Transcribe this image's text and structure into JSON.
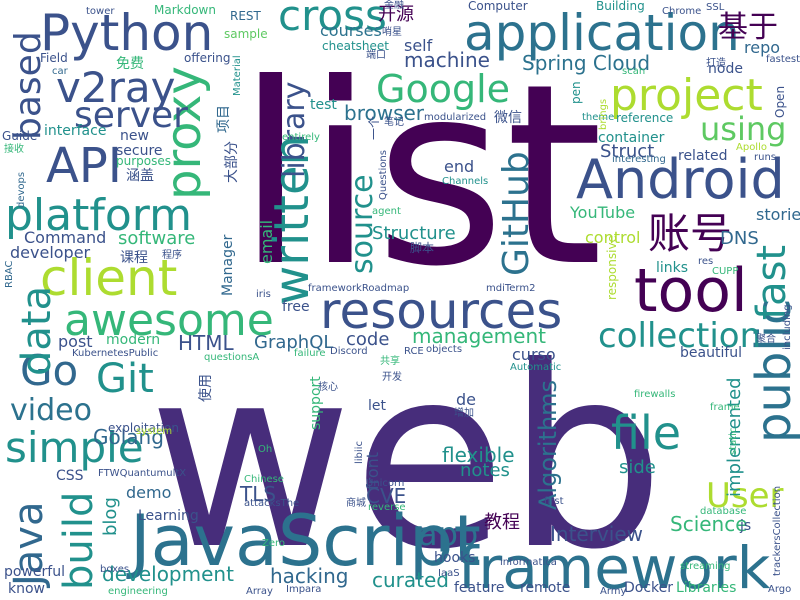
{
  "words": [
    {
      "text": "list",
      "color": "#440154"
    },
    {
      "text": "web",
      "color": "#472d7b"
    },
    {
      "text": "JavaScript",
      "color": "#2c728e"
    },
    {
      "text": "framework",
      "color": "#2c728e"
    },
    {
      "text": "application",
      "color": "#2c728e"
    },
    {
      "text": "Android",
      "color": "#3b528b"
    },
    {
      "text": "client",
      "color": "#addc30"
    },
    {
      "text": "resources",
      "color": "#3b528b"
    },
    {
      "text": "awesome",
      "color": "#35b779"
    },
    {
      "text": "tool",
      "color": "#440154"
    },
    {
      "text": "platform",
      "color": "#21918c"
    },
    {
      "text": "Python",
      "color": "#3b528b"
    },
    {
      "text": "project",
      "color": "#addc30"
    },
    {
      "text": "simple",
      "color": "#21918c"
    },
    {
      "text": "API",
      "color": "#3b528b"
    },
    {
      "text": "Go",
      "color": "#31688e"
    },
    {
      "text": "v2ray",
      "color": "#3b528b"
    },
    {
      "text": "cross",
      "color": "#21918c"
    },
    {
      "text": "Google",
      "color": "#35b779"
    },
    {
      "text": "proxy",
      "color": "#35b779"
    },
    {
      "text": "written",
      "color": "#21918c"
    },
    {
      "text": "public",
      "color": "#2c728e"
    },
    {
      "text": "file",
      "color": "#21918c"
    },
    {
      "text": "data",
      "color": "#21918c"
    },
    {
      "text": "Java",
      "color": "#31688e"
    },
    {
      "text": "build",
      "color": "#21918c"
    },
    {
      "text": "server",
      "color": "#3b528b"
    },
    {
      "text": "based",
      "color": "#3b528b"
    },
    {
      "text": "collection",
      "color": "#21918c"
    },
    {
      "text": "fast",
      "color": "#21918c"
    },
    {
      "text": "using",
      "color": "#5ec962"
    },
    {
      "text": "Git",
      "color": "#21918c"
    },
    {
      "text": "账号",
      "color": "#440154"
    },
    {
      "text": "library",
      "color": "#3b528b"
    },
    {
      "text": "GitHub",
      "color": "#2c728e"
    },
    {
      "text": "source",
      "color": "#21918c"
    },
    {
      "text": "User",
      "color": "#addc30"
    },
    {
      "text": "app",
      "color": "#2c728e"
    },
    {
      "text": "video",
      "color": "#2c728e"
    },
    {
      "text": "基于",
      "color": "#440154"
    },
    {
      "text": "machine",
      "color": "#3b528b"
    },
    {
      "text": "Spring Cloud",
      "color": "#2c728e"
    },
    {
      "text": "management",
      "color": "#35b779"
    },
    {
      "text": "development",
      "color": "#21918c"
    },
    {
      "text": "Algorithms",
      "color": "#2c728e"
    },
    {
      "text": "Science",
      "color": "#35b779"
    },
    {
      "text": "Interview",
      "color": "#3b528b"
    },
    {
      "text": "hacking",
      "color": "#31688e"
    },
    {
      "text": "curated",
      "color": "#21918c"
    },
    {
      "text": "Golang",
      "color": "#31688e"
    },
    {
      "text": "flexible",
      "color": "#21918c"
    },
    {
      "text": "software",
      "color": "#35b779"
    },
    {
      "text": "browser",
      "color": "#2c728e"
    },
    {
      "text": "HTML",
      "color": "#3b528b"
    },
    {
      "text": "GraphQL",
      "color": "#31688e"
    },
    {
      "text": "TLS",
      "color": "#3b528b"
    },
    {
      "text": "CVE",
      "color": "#3b528b"
    },
    {
      "text": "Structure",
      "color": "#21918c"
    },
    {
      "text": "YouTube",
      "color": "#35b779"
    },
    {
      "text": "Struct",
      "color": "#3b528b"
    },
    {
      "text": "DNS",
      "color": "#31688e"
    },
    {
      "text": "control",
      "color": "#addc30"
    },
    {
      "text": "Command",
      "color": "#3b528b"
    },
    {
      "text": "developer",
      "color": "#3b528b"
    },
    {
      "text": "email",
      "color": "#35b779"
    },
    {
      "text": "courses",
      "color": "#2c728e"
    },
    {
      "text": "教程",
      "color": "#440154"
    },
    {
      "text": "repo",
      "color": "#31688e"
    },
    {
      "text": "node",
      "color": "#3b528b"
    },
    {
      "text": "implemented",
      "color": "#21918c"
    },
    {
      "text": "stories",
      "color": "#31688e"
    },
    {
      "text": "side",
      "color": "#21918c"
    },
    {
      "text": "notes",
      "color": "#21918c"
    },
    {
      "text": "demo",
      "color": "#31688e"
    },
    {
      "text": "blog",
      "color": "#21918c"
    },
    {
      "text": "code",
      "color": "#3b528b"
    },
    {
      "text": "post",
      "color": "#3b528b"
    },
    {
      "text": "modern",
      "color": "#35b779"
    },
    {
      "text": "self",
      "color": "#3b528b"
    },
    {
      "text": "test",
      "color": "#21918c"
    },
    {
      "text": "new",
      "color": "#3b528b"
    },
    {
      "text": "secure",
      "color": "#3b528b"
    },
    {
      "text": "interface",
      "color": "#21918c"
    },
    {
      "text": "Guide",
      "color": "#3b528b"
    },
    {
      "text": "purposes",
      "color": "#35b779"
    },
    {
      "text": "涵盖",
      "color": "#3b528b"
    },
    {
      "text": "大部分",
      "color": "#3b528b"
    },
    {
      "text": "项目",
      "color": "#31688e"
    },
    {
      "text": "开源",
      "color": "#440154"
    },
    {
      "text": "cheatsheet",
      "color": "#21918c"
    },
    {
      "text": "免费",
      "color": "#35b779"
    },
    {
      "text": "offering",
      "color": "#3b528b"
    },
    {
      "text": "Markdown",
      "color": "#35b779"
    },
    {
      "text": "REST",
      "color": "#31688e"
    },
    {
      "text": "sample",
      "color": "#5ec962"
    },
    {
      "text": "tower",
      "color": "#3b528b"
    },
    {
      "text": "Computer",
      "color": "#3b528b"
    },
    {
      "text": "Building",
      "color": "#21918c"
    },
    {
      "text": "Chrome",
      "color": "#3b528b"
    },
    {
      "text": "SSL",
      "color": "#3b528b"
    },
    {
      "text": "Field",
      "color": "#3b528b"
    },
    {
      "text": "car",
      "color": "#31688e"
    },
    {
      "text": "Material",
      "color": "#21918c"
    },
    {
      "text": "scan",
      "color": "#35b779"
    },
    {
      "text": "fastest",
      "color": "#3b528b"
    },
    {
      "text": "打造",
      "color": "#3b528b"
    },
    {
      "text": "reference",
      "color": "#21918c"
    },
    {
      "text": "container",
      "color": "#21918c"
    },
    {
      "text": "related",
      "color": "#3b528b"
    },
    {
      "text": "end",
      "color": "#3b528b"
    },
    {
      "text": "interesting",
      "color": "#31688e"
    },
    {
      "text": "runs",
      "color": "#3b528b"
    },
    {
      "text": "Apollo",
      "color": "#addc30"
    },
    {
      "text": "links",
      "color": "#21918c"
    },
    {
      "text": "responsive",
      "color": "#addc30"
    },
    {
      "text": "CUPP",
      "color": "#35b779"
    },
    {
      "text": "Open",
      "color": "#3b528b"
    },
    {
      "text": "theme",
      "color": "#21918c"
    },
    {
      "text": "brings",
      "color": "#addc30"
    },
    {
      "text": "pen",
      "color": "#21918c"
    },
    {
      "text": "微信",
      "color": "#3b528b"
    },
    {
      "text": "modularized",
      "color": "#3b528b"
    },
    {
      "text": "Questions",
      "color": "#3b528b"
    },
    {
      "text": "一个",
      "color": "#3b528b"
    },
    {
      "text": "笔记",
      "color": "#3b528b"
    },
    {
      "text": "Channels",
      "color": "#21918c"
    },
    {
      "text": "agent",
      "color": "#35b779"
    },
    {
      "text": "脚本",
      "color": "#3b528b"
    },
    {
      "text": "课程",
      "color": "#3b528b"
    },
    {
      "text": "程序",
      "color": "#3b528b"
    },
    {
      "text": "Manager",
      "color": "#31688e"
    },
    {
      "text": "iris",
      "color": "#3b528b"
    },
    {
      "text": "RBAC",
      "color": "#31688e"
    },
    {
      "text": "devops",
      "color": "#31688e"
    },
    {
      "text": "接收",
      "color": "#35b779"
    },
    {
      "text": "entirely",
      "color": "#35b779"
    },
    {
      "text": "free",
      "color": "#3b528b"
    },
    {
      "text": "frameworkRoadmap",
      "color": "#3b528b"
    },
    {
      "text": "mdiTerm2",
      "color": "#3b528b"
    },
    {
      "text": "KubernetesPublic",
      "color": "#3b528b"
    },
    {
      "text": "questionsA",
      "color": "#35b779"
    },
    {
      "text": "failure",
      "color": "#35b779"
    },
    {
      "text": "Discord",
      "color": "#3b528b"
    },
    {
      "text": "RCE",
      "color": "#3b528b"
    },
    {
      "text": "objects",
      "color": "#3b528b"
    },
    {
      "text": "共享",
      "color": "#35b779"
    },
    {
      "text": "Automatic",
      "color": "#21918c"
    },
    {
      "text": "beautiful",
      "color": "#3b528b"
    },
    {
      "text": "聚合",
      "color": "#3b528b"
    },
    {
      "text": "including",
      "color": "#3b528b"
    },
    {
      "text": "使用",
      "color": "#3b528b"
    },
    {
      "text": "核心",
      "color": "#3b528b"
    },
    {
      "text": "开发",
      "color": "#3b528b"
    },
    {
      "text": "support",
      "color": "#35b779"
    },
    {
      "text": "de",
      "color": "#3b528b"
    },
    {
      "text": "curso",
      "color": "#3b528b"
    },
    {
      "text": "firewalls",
      "color": "#35b779"
    },
    {
      "text": "frame",
      "color": "#35b779"
    },
    {
      "text": "res",
      "color": "#3b528b"
    },
    {
      "text": "static",
      "color": "#35b779"
    },
    {
      "text": "let",
      "color": "#3b528b"
    },
    {
      "text": "增加",
      "color": "#3b528b"
    },
    {
      "text": "exploitation",
      "color": "#3b528b"
    },
    {
      "text": "system",
      "color": "#addc30"
    },
    {
      "text": "Oh",
      "color": "#35b779"
    },
    {
      "text": "Chinese",
      "color": "#35b779"
    },
    {
      "text": "FTWQuantumultX",
      "color": "#3b528b"
    },
    {
      "text": "Unicorn",
      "color": "#3b528b"
    },
    {
      "text": "attacksThe",
      "color": "#3b528b"
    },
    {
      "text": "商城",
      "color": "#3b528b"
    },
    {
      "text": "reverse",
      "color": "#35b779"
    },
    {
      "text": "first",
      "color": "#3b528b"
    },
    {
      "text": "database",
      "color": "#35b779"
    },
    {
      "text": "trackersCollection",
      "color": "#3b528b"
    },
    {
      "text": "libiic",
      "color": "#3b528b"
    },
    {
      "text": "Learning",
      "color": "#3b528b"
    },
    {
      "text": "boxes",
      "color": "#3b528b"
    },
    {
      "text": "Zero",
      "color": "#35b779"
    },
    {
      "text": "hooks",
      "color": "#3b528b"
    },
    {
      "text": "informatica",
      "color": "#3b528b"
    },
    {
      "text": "streaming",
      "color": "#35b779"
    },
    {
      "text": "front",
      "color": "#3b528b"
    },
    {
      "text": "CSS",
      "color": "#3b528b"
    },
    {
      "text": "powerful",
      "color": "#3b528b"
    },
    {
      "text": "know",
      "color": "#3b528b"
    },
    {
      "text": "engineering",
      "color": "#35b779"
    },
    {
      "text": "Array",
      "color": "#3b528b"
    },
    {
      "text": "Impara",
      "color": "#3b528b"
    },
    {
      "text": "IaaS",
      "color": "#3b528b"
    },
    {
      "text": "feature",
      "color": "#3b528b"
    },
    {
      "text": "remote",
      "color": "#3b528b"
    },
    {
      "text": "Army",
      "color": "#3b528b"
    },
    {
      "text": "Docker",
      "color": "#3b528b"
    },
    {
      "text": "Libraries",
      "color": "#35b779"
    },
    {
      "text": "Argo",
      "color": "#3b528b"
    },
    {
      "text": "js",
      "color": "#3b528b"
    },
    {
      "text": "金融",
      "color": "#3b528b"
    },
    {
      "text": "端口",
      "color": "#3b528b"
    },
    {
      "text": "哨星",
      "color": "#3b528b"
    }
  ]
}
